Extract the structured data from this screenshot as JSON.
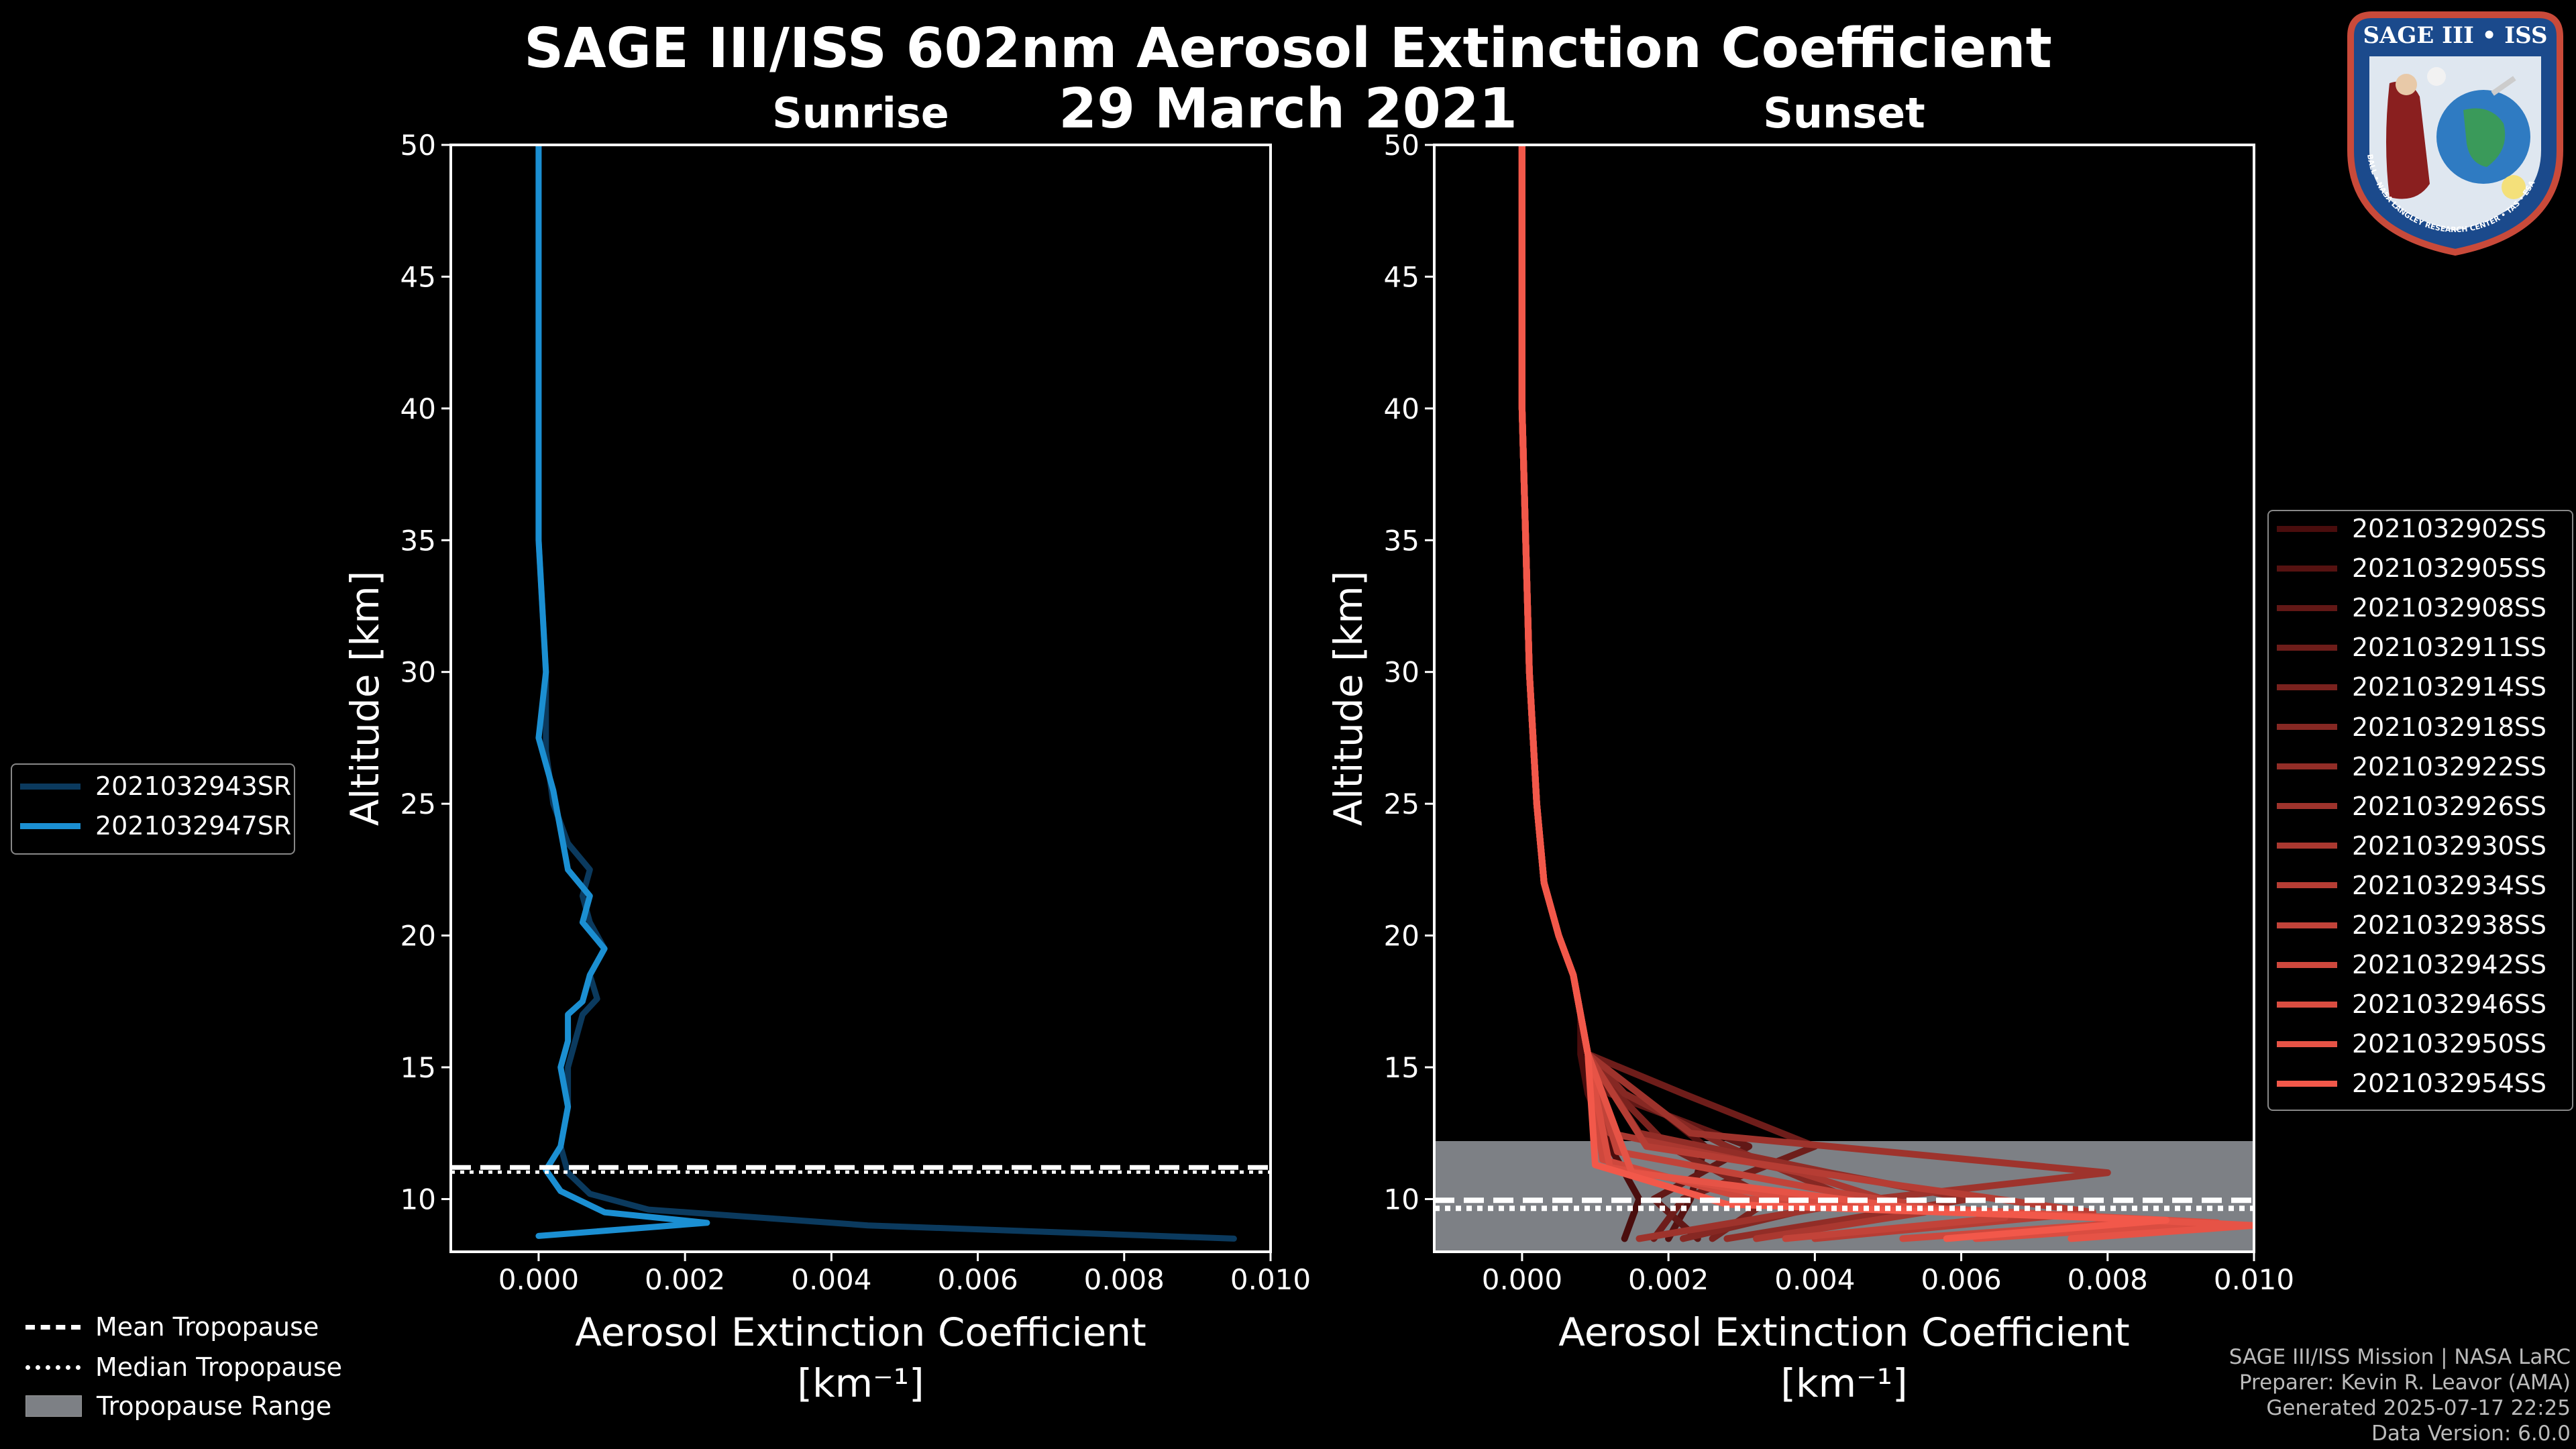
{
  "title": {
    "line1": "SAGE III/ISS 602nm Aerosol Extinction Coefficient",
    "line2": "29 March 2021"
  },
  "footer": {
    "mission": "SAGE III/ISS Mission | NASA LaRC",
    "preparer": "Preparer: Kevin R. Leavor (AMA)",
    "generated": "Generated 2025-07-17 22:25",
    "version": "Data Version: 6.0.0"
  },
  "logo": {
    "text": "SAGE III • ISS",
    "ring_text": "BALL • NASA LANGLEY RESEARCH CENTER • TAS • ESA"
  },
  "colors": {
    "background": "#000000",
    "sunrise_series": [
      "#0b3a5e",
      "#1b8fd2"
    ],
    "sunset_dark": "#4a0d0d",
    "sunset_light": "#f2584a",
    "tropopause_range": "#7d8085"
  },
  "bottom_legend": {
    "items": [
      {
        "label": "Mean Tropopause",
        "style": "dashed"
      },
      {
        "label": "Median Tropopause",
        "style": "dotted"
      },
      {
        "label": "Tropopause Range",
        "style": "patch"
      }
    ]
  },
  "chart_data": [
    {
      "type": "line",
      "title": "Sunrise",
      "xlabel": "Aerosol Extinction Coefficient",
      "xunits": "[km⁻¹]",
      "ylabel": "Altitude [km]",
      "xlim": [
        -0.0012,
        0.01
      ],
      "ylim": [
        8,
        50
      ],
      "xticks": [
        0.0,
        0.002,
        0.004,
        0.006,
        0.008,
        0.01
      ],
      "xtick_labels": [
        "0.000",
        "0.002",
        "0.004",
        "0.006",
        "0.008",
        "0.010"
      ],
      "yticks": [
        10,
        15,
        20,
        25,
        30,
        35,
        40,
        45,
        50
      ],
      "tropopause": {
        "mean": 11.2,
        "median": 11.1,
        "range": [
          11.05,
          11.25
        ]
      },
      "series": [
        {
          "name": "2021032943SR",
          "color": "#0b3a5e",
          "x": [
            0.0095,
            0.0045,
            0.0015,
            0.0007,
            0.0004,
            0.0003,
            0.0004,
            0.0004,
            0.0005,
            0.0006,
            0.0008,
            0.0007,
            0.0009,
            0.0007,
            0.0006,
            0.0007,
            0.0004,
            0.0002,
            0.0001,
            0.0001,
            0.0,
            0.0,
            0.0,
            0.0
          ],
          "y": [
            8.5,
            9.0,
            9.6,
            10.2,
            11.0,
            12.0,
            13.5,
            15.0,
            16.0,
            17.0,
            17.6,
            18.5,
            19.5,
            20.5,
            21.5,
            22.5,
            23.5,
            25.0,
            27.0,
            30.0,
            35.0,
            40.0,
            45.0,
            50.0
          ]
        },
        {
          "name": "2021032947SR",
          "color": "#1b8fd2",
          "x": [
            0.0,
            0.0023,
            0.0009,
            0.0003,
            0.0001,
            0.0003,
            0.0004,
            0.0003,
            0.0004,
            0.0004,
            0.0006,
            0.0007,
            0.0009,
            0.0006,
            0.0007,
            0.0004,
            0.0003,
            0.0002,
            0.0,
            0.0001,
            0.0,
            0.0,
            0.0,
            0.0
          ],
          "y": [
            8.6,
            9.1,
            9.5,
            10.3,
            11.1,
            12.0,
            13.5,
            15.0,
            16.0,
            17.0,
            17.5,
            18.5,
            19.5,
            20.5,
            21.5,
            22.5,
            24.0,
            25.5,
            27.5,
            30.0,
            35.0,
            40.0,
            45.0,
            50.0
          ]
        }
      ]
    },
    {
      "type": "line",
      "title": "Sunset",
      "xlabel": "Aerosol Extinction Coefficient",
      "xunits": "[km⁻¹]",
      "ylabel": "Altitude [km]",
      "xlim": [
        -0.0012,
        0.01
      ],
      "ylim": [
        8,
        50
      ],
      "xticks": [
        0.0,
        0.002,
        0.004,
        0.006,
        0.008,
        0.01
      ],
      "xtick_labels": [
        "0.000",
        "0.002",
        "0.004",
        "0.006",
        "0.008",
        "0.010"
      ],
      "yticks": [
        10,
        15,
        20,
        25,
        30,
        35,
        40,
        45,
        50
      ],
      "tropopause": {
        "mean": 9.8,
        "median": 9.8,
        "range": [
          8.0,
          12.2
        ]
      },
      "series": [
        {
          "name": "2021032902SS",
          "x": [
            0.0014,
            0.0016,
            0.0012,
            0.0009,
            0.0008,
            0.0008,
            0.0007,
            0.0005,
            0.0003,
            0.0002,
            0.0001,
            0.0,
            0.0
          ],
          "y": [
            8.5,
            10.0,
            12.0,
            14.0,
            15.5,
            17.0,
            18.5,
            20.0,
            22.0,
            25.0,
            30.0,
            40.0,
            50.0
          ]
        },
        {
          "name": "2021032905SS",
          "x": [
            0.002,
            0.0023,
            0.0025,
            0.0016,
            0.0009,
            0.0008,
            0.0007,
            0.0005,
            0.0003,
            0.0002,
            0.0001,
            0.0,
            0.0
          ],
          "y": [
            8.5,
            10.0,
            12.0,
            14.0,
            15.5,
            17.0,
            18.5,
            20.0,
            22.0,
            25.0,
            30.0,
            40.0,
            50.0
          ]
        },
        {
          "name": "2021032908SS",
          "x": [
            0.0024,
            0.0018,
            0.0031,
            0.0012,
            0.0009,
            0.0008,
            0.0007,
            0.0005,
            0.0003,
            0.0002,
            0.0001,
            0.0,
            0.0
          ],
          "y": [
            8.5,
            10.0,
            12.0,
            14.0,
            15.5,
            17.0,
            18.5,
            20.0,
            22.0,
            25.0,
            30.0,
            40.0,
            50.0
          ]
        },
        {
          "name": "2021032911SS",
          "x": [
            0.0018,
            0.0022,
            0.004,
            0.0022,
            0.0009,
            0.0008,
            0.0007,
            0.0005,
            0.0003,
            0.0002,
            0.0001,
            0.0,
            0.0
          ],
          "y": [
            8.5,
            10.0,
            12.0,
            14.0,
            15.5,
            17.0,
            18.5,
            20.0,
            22.0,
            25.0,
            30.0,
            40.0,
            50.0
          ]
        },
        {
          "name": "2021032914SS",
          "x": [
            0.0026,
            0.0034,
            0.002,
            0.0013,
            0.0009,
            0.0008,
            0.0007,
            0.0005,
            0.0003,
            0.0002,
            0.0001,
            0.0,
            0.0
          ],
          "y": [
            8.5,
            10.0,
            12.0,
            14.0,
            15.5,
            17.0,
            18.5,
            20.0,
            22.0,
            25.0,
            30.0,
            40.0,
            50.0
          ]
        },
        {
          "name": "2021032918SS",
          "x": [
            0.0022,
            0.0045,
            0.0028,
            0.0014,
            0.0009,
            0.0008,
            0.0007,
            0.0005,
            0.0003,
            0.0002,
            0.0001,
            0.0,
            0.0
          ],
          "y": [
            8.5,
            10.0,
            12.0,
            14.0,
            15.5,
            17.0,
            18.5,
            20.0,
            22.0,
            25.0,
            30.0,
            40.0,
            50.0
          ]
        },
        {
          "name": "2021032922SS",
          "x": [
            0.0028,
            0.0061,
            0.0042,
            0.0016,
            0.0009,
            0.0008,
            0.0007,
            0.0005,
            0.0003,
            0.0002,
            0.0001,
            0.0,
            0.0
          ],
          "y": [
            8.5,
            10.0,
            11.0,
            12.5,
            15.5,
            17.0,
            18.5,
            20.0,
            22.0,
            25.0,
            30.0,
            40.0,
            50.0
          ]
        },
        {
          "name": "2021032926SS",
          "x": [
            0.0016,
            0.0048,
            0.008,
            0.0023,
            0.0009,
            0.0008,
            0.0007,
            0.0005,
            0.0003,
            0.0002,
            0.0001,
            0.0,
            0.0
          ],
          "y": [
            8.5,
            10.0,
            11.0,
            12.5,
            15.5,
            17.0,
            18.5,
            20.0,
            22.0,
            25.0,
            30.0,
            40.0,
            50.0
          ]
        },
        {
          "name": "2021032930SS",
          "x": [
            0.0032,
            0.0055,
            0.0038,
            0.0012,
            0.0009,
            0.0008,
            0.0007,
            0.0005,
            0.0003,
            0.0002,
            0.0001,
            0.0,
            0.0
          ],
          "y": [
            8.5,
            9.5,
            11.0,
            12.5,
            15.5,
            17.0,
            18.5,
            20.0,
            22.0,
            25.0,
            30.0,
            40.0,
            50.0
          ]
        },
        {
          "name": "2021032934SS",
          "x": [
            0.004,
            0.0078,
            0.0052,
            0.0017,
            0.0009,
            0.0008,
            0.0007,
            0.0005,
            0.0003,
            0.0002,
            0.0001,
            0.0,
            0.0
          ],
          "y": [
            8.5,
            9.5,
            10.5,
            12.0,
            15.5,
            17.0,
            18.5,
            20.0,
            22.0,
            25.0,
            30.0,
            40.0,
            50.0
          ]
        },
        {
          "name": "2021032938SS",
          "x": [
            0.0036,
            0.0066,
            0.0044,
            0.0013,
            0.0009,
            0.0008,
            0.0007,
            0.0005,
            0.0003,
            0.0002,
            0.0001,
            0.0,
            0.0
          ],
          "y": [
            8.5,
            9.3,
            10.2,
            11.8,
            15.5,
            17.0,
            18.5,
            20.0,
            22.0,
            25.0,
            30.0,
            40.0,
            50.0
          ]
        },
        {
          "name": "2021032942SS",
          "x": [
            0.0052,
            0.0087,
            0.0031,
            0.0011,
            0.0009,
            0.0008,
            0.0007,
            0.0005,
            0.0003,
            0.0002,
            0.0001,
            0.0,
            0.0
          ],
          "y": [
            8.5,
            9.2,
            10.0,
            11.5,
            15.5,
            17.0,
            18.5,
            20.0,
            22.0,
            25.0,
            30.0,
            40.0,
            50.0
          ]
        },
        {
          "name": "2021032946SS",
          "x": [
            0.0062,
            0.0095,
            0.0039,
            0.0012,
            0.0009,
            0.0008,
            0.0007,
            0.0005,
            0.0003,
            0.0002,
            0.0001,
            0.0,
            0.0
          ],
          "y": [
            8.5,
            9.1,
            9.9,
            11.2,
            15.5,
            17.0,
            18.5,
            20.0,
            22.0,
            25.0,
            30.0,
            40.0,
            50.0
          ]
        },
        {
          "name": "2021032950SS",
          "x": [
            0.0075,
            0.01,
            0.0055,
            0.0015,
            0.0009,
            0.0008,
            0.0007,
            0.0005,
            0.0003,
            0.0002,
            0.0001,
            0.0,
            0.0
          ],
          "y": [
            8.5,
            9.0,
            9.6,
            11.0,
            15.5,
            17.0,
            18.5,
            20.0,
            22.0,
            25.0,
            30.0,
            40.0,
            50.0
          ]
        },
        {
          "name": "2021032954SS",
          "x": [
            0.0058,
            0.0088,
            0.0028,
            0.001,
            0.0009,
            0.0008,
            0.0007,
            0.0005,
            0.0003,
            0.0002,
            0.0001,
            0.0,
            0.0
          ],
          "y": [
            8.5,
            9.2,
            9.8,
            11.3,
            15.5,
            17.0,
            18.5,
            20.0,
            22.0,
            25.0,
            30.0,
            40.0,
            50.0
          ]
        }
      ]
    }
  ]
}
